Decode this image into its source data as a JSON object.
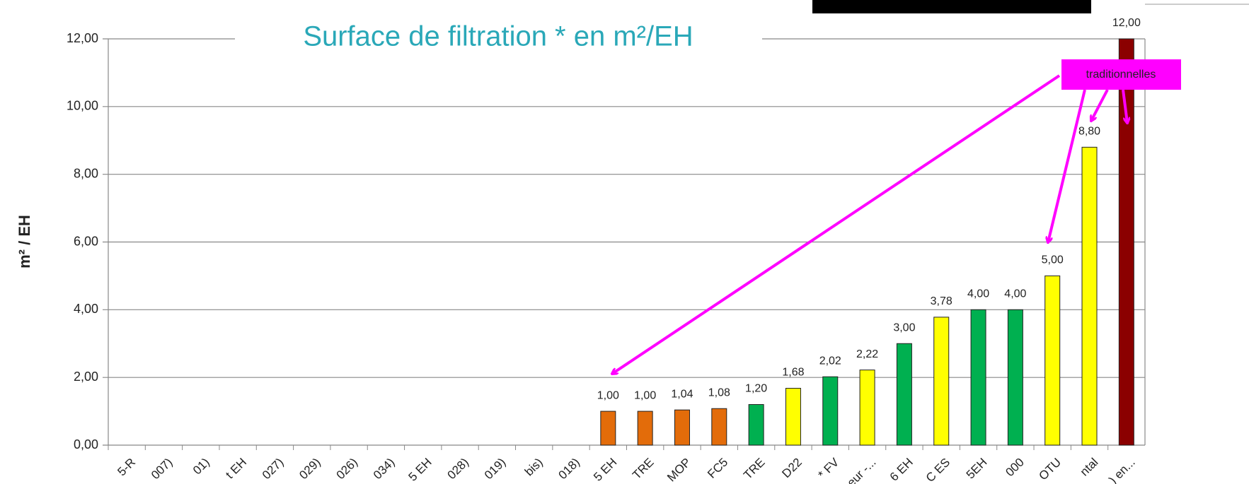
{
  "chart_data": {
    "type": "bar",
    "title": "Surface de filtration * en m²/EH",
    "y_label": "m² / EH",
    "annotation": "traditionnelles",
    "categories": [
      "5-R",
      "007)",
      "01)",
      "t EH",
      "027)",
      "029)",
      "026)",
      "034)",
      "5 EH",
      "028)",
      "019)",
      "bis)",
      "018)",
      "5 EH",
      "TRE",
      "MOP",
      "FC5",
      "TRE",
      "D22",
      "* FV",
      "eur -...",
      "6 EH",
      "C ES",
      "5EH",
      "000",
      "OTU",
      "ntal",
      ") en..."
    ],
    "values": [
      null,
      null,
      null,
      null,
      null,
      null,
      null,
      null,
      null,
      null,
      null,
      null,
      null,
      1.0,
      1.0,
      1.04,
      1.08,
      1.2,
      1.68,
      2.02,
      2.22,
      3.0,
      3.78,
      4.0,
      4.0,
      5.0,
      8.8,
      12.0
    ],
    "value_labels": [
      null,
      null,
      null,
      null,
      null,
      null,
      null,
      null,
      null,
      null,
      null,
      null,
      null,
      "1,00",
      "1,00",
      "1,04",
      "1,08",
      "1,20",
      "1,68",
      "2,02",
      "2,22",
      "3,00",
      "3,78",
      "4,00",
      "4,00",
      "5,00",
      "8,80",
      "12,00"
    ],
    "colors": [
      null,
      null,
      null,
      null,
      null,
      null,
      null,
      null,
      null,
      null,
      null,
      null,
      null,
      "#e36c0a",
      "#e36c0a",
      "#e36c0a",
      "#e36c0a",
      "#00b050",
      "#ffff00",
      "#00b050",
      "#ffff00",
      "#00b050",
      "#ffff00",
      "#00b050",
      "#00b050",
      "#ffff00",
      "#ffff00",
      "#8b0000"
    ],
    "ylim": [
      0,
      12
    ],
    "yticks": [
      {
        "value": 0,
        "label": "0,00"
      },
      {
        "value": 2,
        "label": "2,00"
      },
      {
        "value": 4,
        "label": "4,00"
      },
      {
        "value": 6,
        "label": "6,00"
      },
      {
        "value": 8,
        "label": "8,00"
      },
      {
        "value": 10,
        "label": "10,00"
      },
      {
        "value": 12,
        "label": "12,00"
      }
    ],
    "grid": true
  }
}
